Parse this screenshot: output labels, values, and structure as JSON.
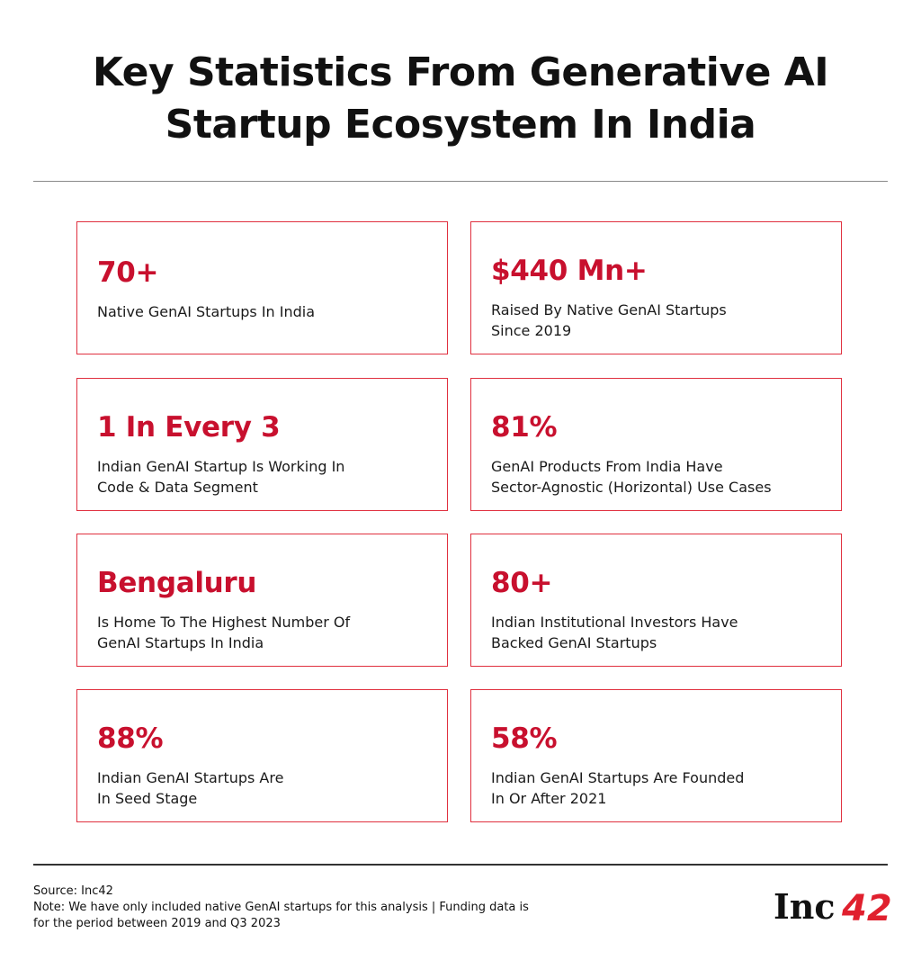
{
  "title": {
    "line1": "Key Statistics From Generative AI",
    "line2": "Startup Ecosystem In India"
  },
  "colors": {
    "accent": "#c8102e",
    "border": "#e0303f",
    "text": "#111111"
  },
  "cards": [
    {
      "stat": "70+",
      "line1": "Native GenAI Startups In India",
      "line2": ""
    },
    {
      "stat": "$440 Mn+",
      "line1": "Raised By Native GenAI Startups",
      "line2": "Since 2019"
    },
    {
      "stat": "1 In Every 3",
      "line1": "Indian GenAI Startup Is Working In",
      "line2": "Code & Data Segment"
    },
    {
      "stat": "81%",
      "line1": "GenAI Products From India Have",
      "line2": "Sector-Agnostic (Horizontal) Use Cases"
    },
    {
      "stat": "Bengaluru",
      "line1": "Is Home To The Highest Number Of",
      "line2": "GenAI Startups In India"
    },
    {
      "stat": "80+",
      "line1": "Indian Institutional Investors Have",
      "line2": "Backed GenAI Startups"
    },
    {
      "stat": "88%",
      "line1": "Indian GenAI Startups Are",
      "line2": "In Seed Stage"
    },
    {
      "stat": "58%",
      "line1": "Indian GenAI Startups Are Founded",
      "line2": "In Or After 2021"
    }
  ],
  "footer": {
    "source": "Source: Inc42",
    "note_line1": "Note: We have only included native GenAI startups for this analysis | Funding data is",
    "note_line2": "for the period between 2019 and Q3 2023"
  },
  "logo": {
    "text": "Inc42"
  }
}
